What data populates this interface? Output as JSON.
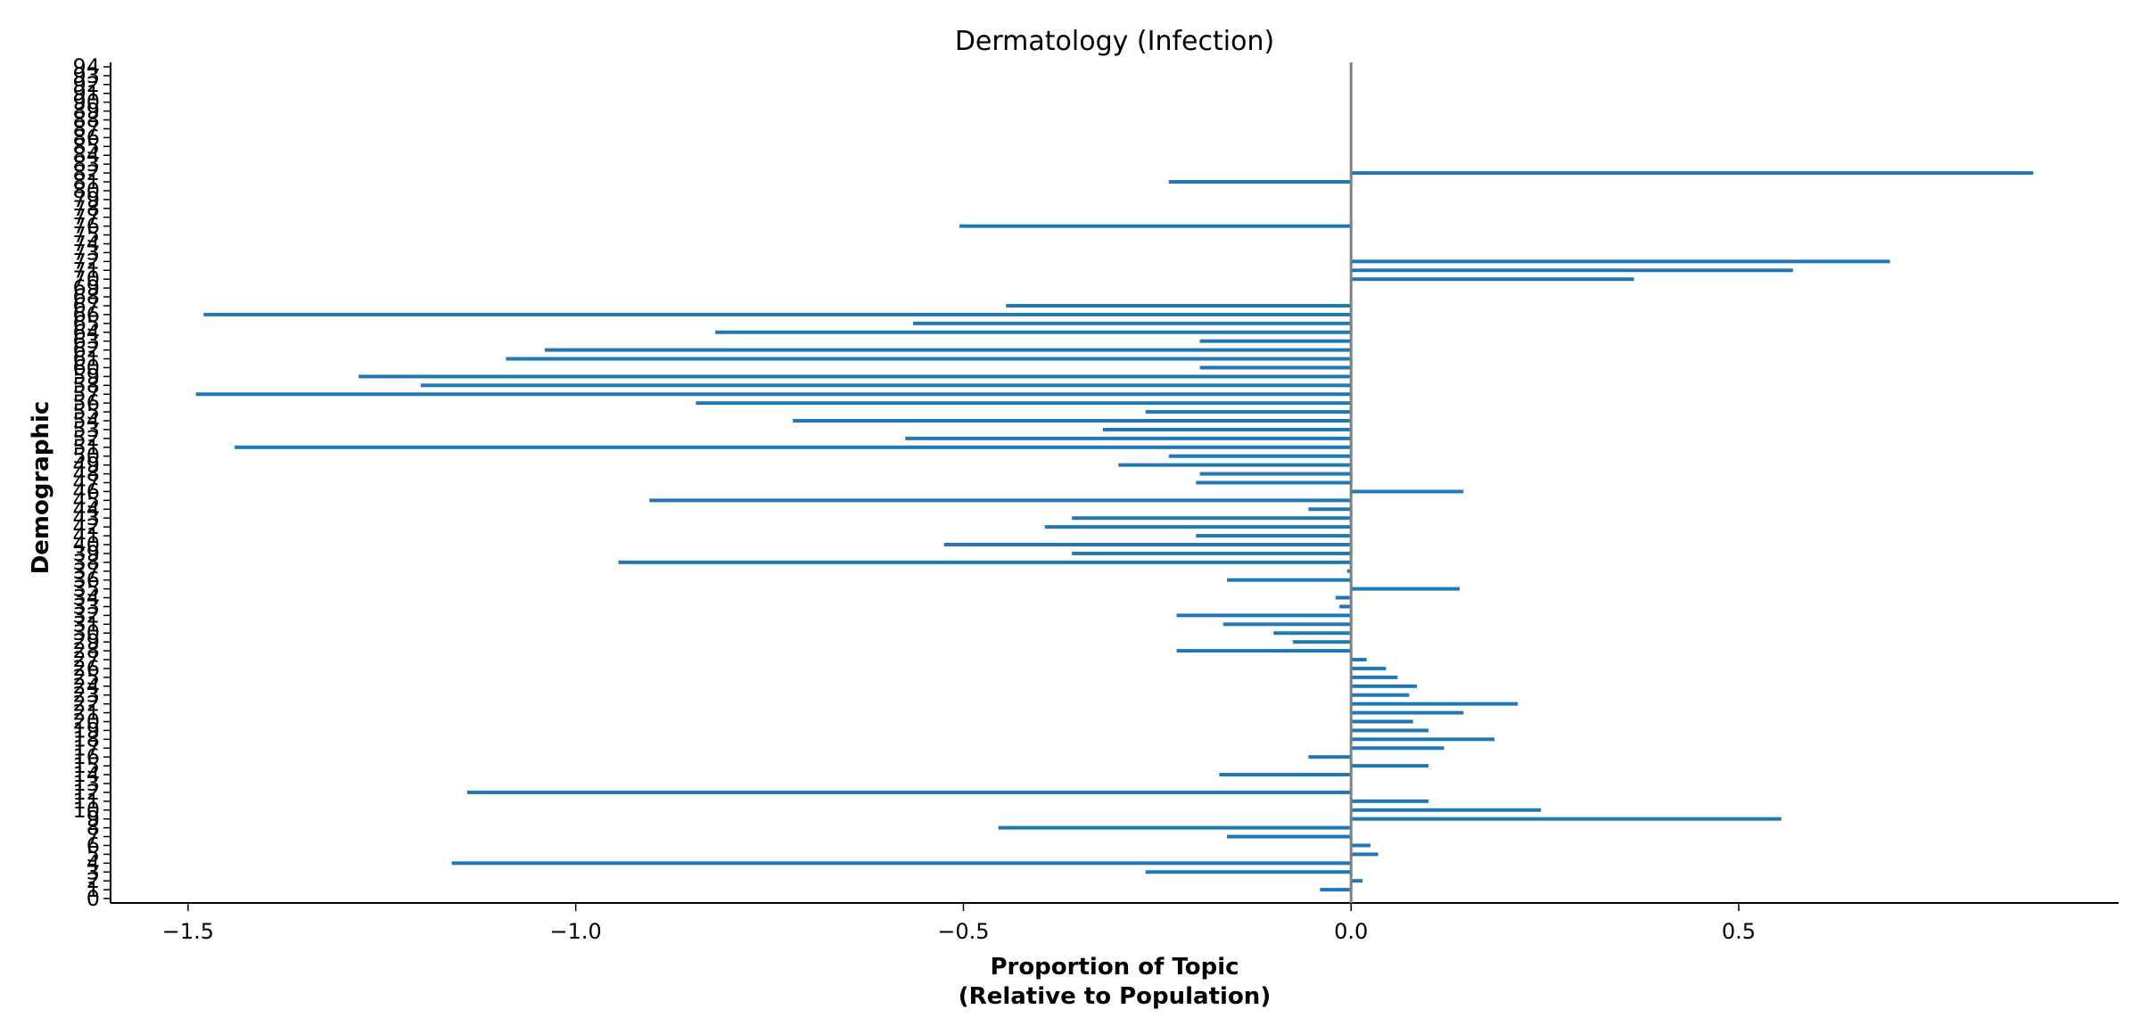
{
  "chart_data": {
    "type": "bar",
    "orientation": "horizontal",
    "title": "Dermatology (Infection)",
    "xlabel": [
      "Proportion of Topic",
      "(Relative to Population)"
    ],
    "ylabel": "Demographic",
    "xlim": [
      -1.6,
      0.99
    ],
    "ylim": [
      -0.5,
      94.5
    ],
    "x_ticks": [
      -1.5,
      -1.0,
      -0.5,
      0.0,
      0.5
    ],
    "x_tick_labels": [
      "−1.5",
      "−1.0",
      "−0.5",
      "0.0",
      "0.5"
    ],
    "y_ticks": [
      0,
      1,
      2,
      3,
      4,
      5,
      6,
      7,
      8,
      9,
      10,
      11,
      12,
      13,
      14,
      15,
      16,
      17,
      18,
      19,
      20,
      21,
      22,
      23,
      24,
      25,
      26,
      27,
      28,
      29,
      30,
      31,
      32,
      33,
      34,
      35,
      36,
      37,
      38,
      39,
      40,
      41,
      42,
      43,
      44,
      45,
      46,
      47,
      48,
      49,
      50,
      51,
      52,
      53,
      54,
      55,
      56,
      57,
      58,
      59,
      60,
      61,
      62,
      63,
      64,
      65,
      66,
      67,
      68,
      69,
      70,
      71,
      72,
      73,
      74,
      75,
      76,
      77,
      78,
      79,
      80,
      81,
      82,
      83,
      84,
      85,
      86,
      87,
      88,
      89,
      90,
      91,
      92,
      93,
      94
    ],
    "zero_line": 0.0,
    "colors": {
      "bar": "#1f77b4",
      "zero_line": "#808080",
      "axis": "#000000"
    },
    "grid": false,
    "series": [
      {
        "values": [
          0,
          -0.04,
          0.015,
          -0.265,
          -1.16,
          0.035,
          0.025,
          -0.16,
          -0.455,
          0.555,
          0.245,
          0.1,
          -1.14,
          0,
          -0.17,
          0.1,
          -0.055,
          0.12,
          0.185,
          0.1,
          0.08,
          0.145,
          0.215,
          0.075,
          0.085,
          0.06,
          0.045,
          0.02,
          -0.225,
          -0.075,
          -0.1,
          -0.165,
          -0.225,
          -0.015,
          -0.02,
          0.14,
          -0.16,
          -0.005,
          -0.945,
          -0.36,
          -0.525,
          -0.2,
          -0.395,
          -0.36,
          -0.055,
          -0.905,
          0.145,
          -0.2,
          -0.195,
          -0.3,
          -0.235,
          -1.44,
          -0.575,
          -0.32,
          -0.72,
          -0.265,
          -0.845,
          -1.49,
          -1.2,
          -1.28,
          -0.195,
          -1.09,
          -1.04,
          -0.195,
          -0.82,
          -0.565,
          -1.48,
          -0.445,
          0,
          0,
          0.365,
          0.57,
          0.695,
          0,
          0,
          0,
          -0.505,
          0,
          0,
          0,
          0,
          -0.235,
          0.88,
          0,
          0,
          0,
          0,
          0,
          0,
          0,
          0,
          0,
          0,
          0,
          0
        ]
      }
    ]
  }
}
